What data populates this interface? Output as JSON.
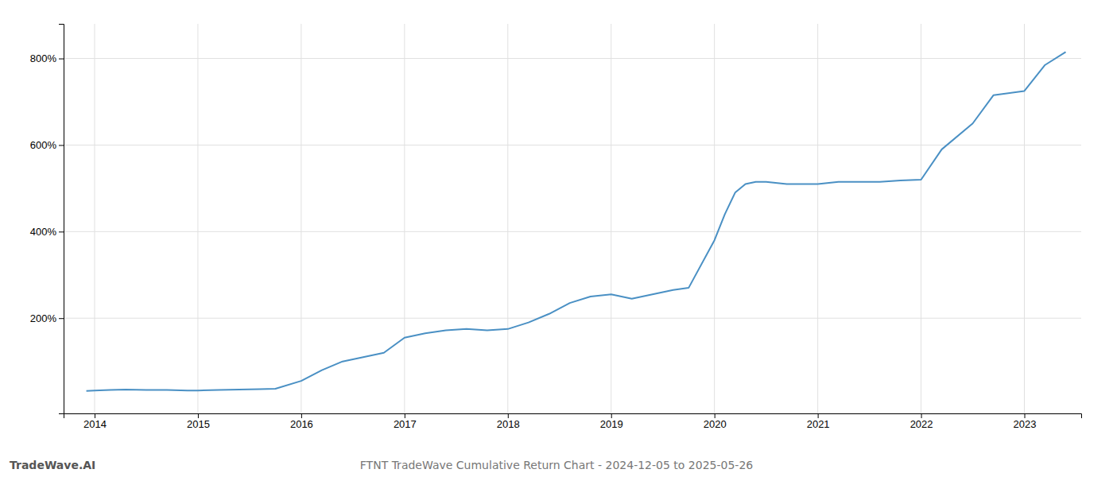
{
  "chart_data": {
    "type": "line",
    "title": "FTNT TradeWave Cumulative Return Chart - 2024-12-05 to 2025-05-26",
    "annotations": [
      "TradeWave.AI"
    ],
    "color": "#4a90c4",
    "grid": true,
    "x": [
      2013.92,
      2014.0,
      2014.15,
      2014.3,
      2014.5,
      2014.7,
      2014.9,
      2015.0,
      2015.2,
      2015.4,
      2015.6,
      2015.75,
      2016.0,
      2016.2,
      2016.4,
      2016.6,
      2016.8,
      2017.0,
      2017.2,
      2017.4,
      2017.6,
      2017.8,
      2018.0,
      2018.2,
      2018.4,
      2018.6,
      2018.8,
      2019.0,
      2019.2,
      2019.4,
      2019.6,
      2019.75,
      2020.0,
      2020.1,
      2020.2,
      2020.3,
      2020.4,
      2020.5,
      2020.7,
      2020.9,
      2021.0,
      2021.2,
      2021.4,
      2021.6,
      2021.8,
      2022.0,
      2022.2,
      2022.5,
      2022.7,
      2023.0,
      2023.2,
      2023.4
    ],
    "values": [
      32,
      33,
      34,
      35,
      34,
      34,
      33,
      33,
      34,
      35,
      36,
      37,
      55,
      80,
      100,
      110,
      120,
      155,
      165,
      172,
      175,
      172,
      175,
      190,
      210,
      235,
      250,
      255,
      245,
      255,
      265,
      270,
      380,
      440,
      490,
      510,
      515,
      515,
      510,
      510,
      510,
      515,
      515,
      515,
      518,
      520,
      590,
      650,
      715,
      725,
      785,
      815
    ],
    "xlim": [
      2013.7,
      2023.55
    ],
    "ylim": [
      -20,
      880
    ],
    "xticks": [
      2014,
      2015,
      2016,
      2017,
      2018,
      2019,
      2020,
      2021,
      2022,
      2023
    ],
    "yticks": [
      {
        "value": 200,
        "label": "200%"
      },
      {
        "value": 400,
        "label": "400%"
      },
      {
        "value": 600,
        "label": "600%"
      },
      {
        "value": 800,
        "label": "800%"
      }
    ]
  }
}
